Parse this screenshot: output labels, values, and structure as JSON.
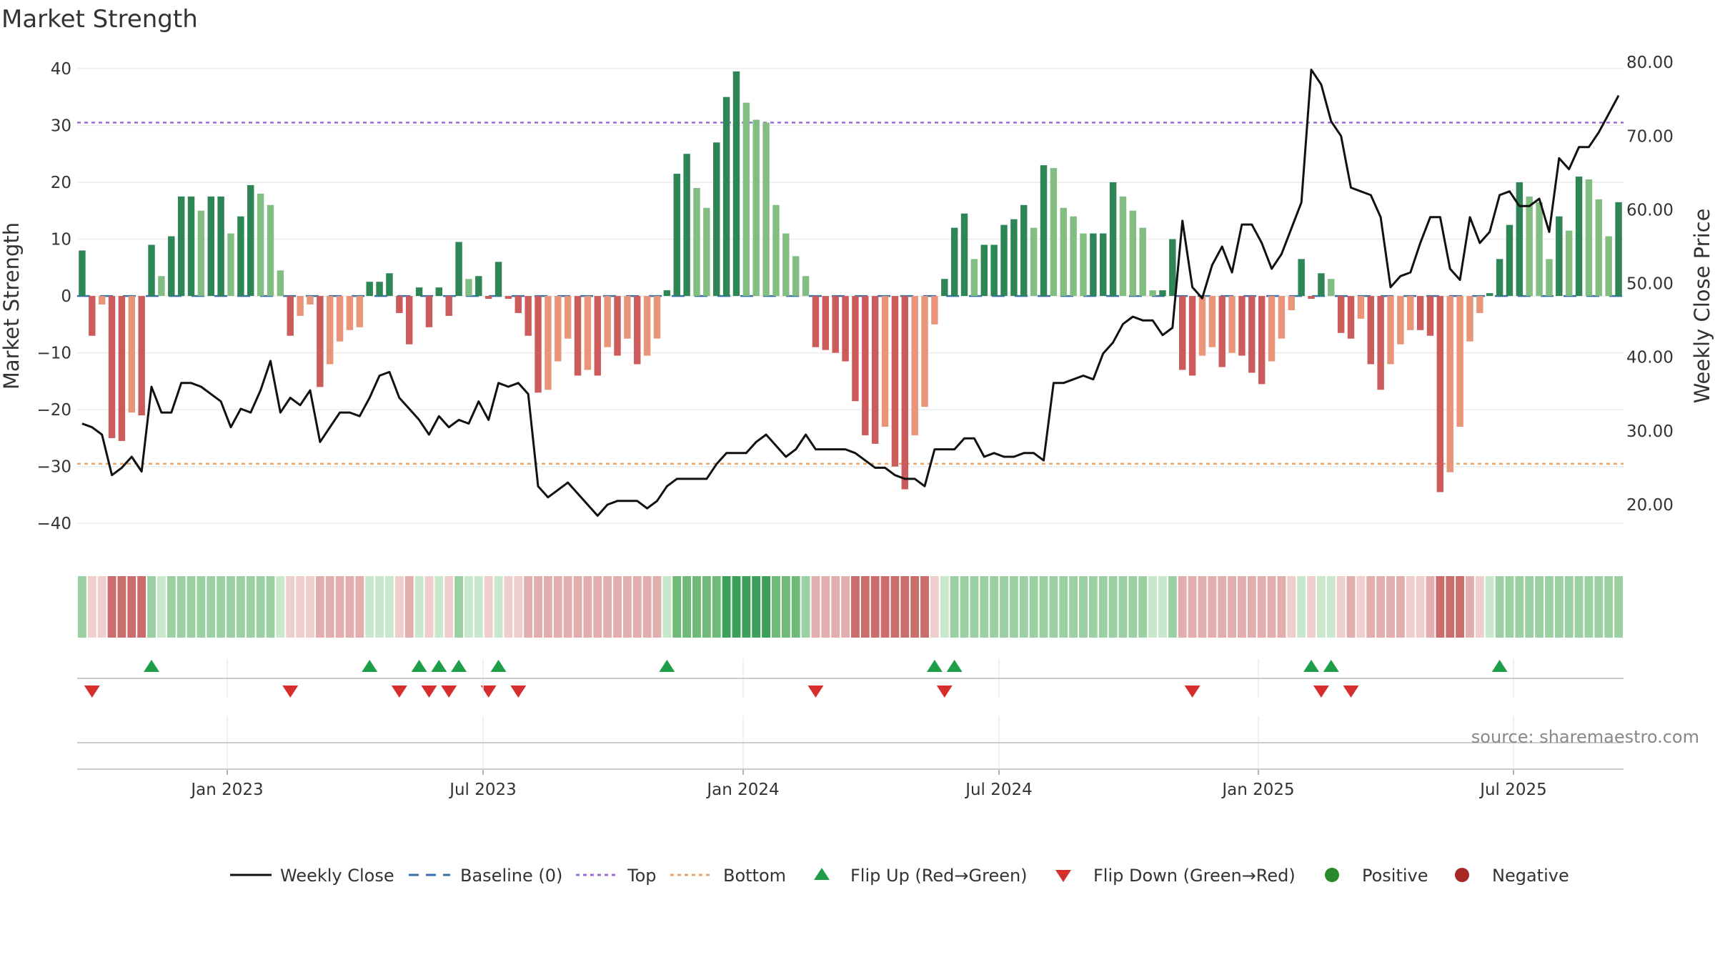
{
  "chart_data": {
    "type": "bar",
    "title": "Market Strength",
    "ylabel": "Market Strength",
    "y2label": "Weekly Close Price",
    "ylim": [
      -45,
      42
    ],
    "y2lim": [
      13.6,
      80.7
    ],
    "yticks": [
      40,
      30,
      20,
      10,
      0,
      -10,
      -20,
      -30,
      -40
    ],
    "y2ticks": [
      "80.00",
      "70.00",
      "60.00",
      "50.00",
      "40.00",
      "30.00",
      "20.00"
    ],
    "x_ticks": [
      "Jan 2023",
      "Jul 2023",
      "Jan 2024",
      "Jul 2024",
      "Jan 2025",
      "Jul 2025"
    ],
    "top_level": 30.5,
    "bottom_level": -29.5,
    "baseline": 0,
    "strength_values": [
      8,
      -7,
      -1.5,
      -25,
      -25.5,
      -20.5,
      -21,
      9,
      3.5,
      10.5,
      17.5,
      17.5,
      15,
      17.5,
      17.5,
      11,
      14,
      19.5,
      18,
      16,
      4.5,
      -7,
      -3.5,
      -1.5,
      -16,
      -12,
      -8,
      -6,
      -5.5,
      2.5,
      2.5,
      4,
      -3,
      -8.5,
      1.5,
      -5.5,
      1.5,
      -3.5,
      9.5,
      3,
      3.5,
      -0.5,
      6,
      -0.5,
      -3,
      -7,
      -17,
      -16.5,
      -11.5,
      -7.5,
      -14,
      -13,
      -14,
      -9,
      -10.5,
      -7.5,
      -12,
      -10.5,
      -7.5,
      1,
      21.5,
      25,
      19,
      15.5,
      27,
      35,
      39.5,
      34,
      31,
      30.5,
      16,
      11,
      7,
      3.5,
      -9,
      -9.5,
      -10,
      -11.5,
      -18.5,
      -24.5,
      -26,
      -23,
      -30,
      -34,
      -24.5,
      -19.5,
      -5,
      3,
      12,
      14.5,
      6.5,
      9,
      9,
      12.5,
      13.5,
      16,
      12,
      23,
      22.5,
      15.5,
      14,
      11,
      11,
      11,
      20,
      17.5,
      15,
      12,
      1,
      1,
      10,
      -13,
      -14,
      -10.5,
      -9,
      -12.5,
      -10,
      -10.5,
      -13.5,
      -15.5,
      -11.5,
      -7.5,
      -2.5,
      6.5,
      -0.5,
      4,
      3,
      -6.5,
      -7.5,
      -4,
      -12,
      -16.5,
      -12,
      -8.5,
      -6,
      -6,
      -7,
      -34.5,
      -31,
      -23,
      -8,
      -3,
      0.5,
      6.5,
      12.5,
      20,
      17.5,
      16.5,
      6.5,
      14,
      11.5,
      21,
      20.5,
      17,
      10.5,
      16.5
    ],
    "close_values": [
      31,
      30.5,
      29.5,
      24,
      25,
      26.5,
      24.5,
      36,
      32.5,
      32.5,
      36.5,
      36.5,
      36,
      35,
      34,
      30.5,
      33,
      32.5,
      35.5,
      39.5,
      32.5,
      34.5,
      33.5,
      35.5,
      28.5,
      30.5,
      32.5,
      32.5,
      32,
      34.5,
      37.5,
      38,
      34.5,
      33,
      31.5,
      29.5,
      32,
      30.5,
      31.5,
      31,
      34,
      31.5,
      36.5,
      36,
      36.5,
      35,
      22.5,
      21,
      22,
      23,
      21.5,
      20,
      18.5,
      20,
      20.5,
      20.5,
      20.5,
      19.5,
      20.5,
      22.5,
      23.5,
      23.5,
      23.5,
      23.5,
      25.5,
      27,
      27,
      27,
      28.5,
      29.5,
      28,
      26.5,
      27.5,
      29.5,
      27.5,
      27.5,
      27.5,
      27.5,
      27,
      26,
      25,
      25,
      24,
      23.5,
      23.5,
      22.5,
      27.5,
      27.5,
      27.5,
      29,
      29,
      26.5,
      27,
      26.5,
      26.5,
      27,
      27,
      26,
      36.5,
      36.5,
      37,
      37.5,
      37,
      40.5,
      42,
      44.5,
      45.5,
      45,
      45,
      43,
      44,
      58.5,
      49.5,
      48,
      52.5,
      55,
      51.5,
      58,
      58,
      55.5,
      52,
      54,
      57.5,
      61,
      79,
      77,
      72,
      70,
      63,
      62.5,
      62,
      59,
      49.5,
      51,
      51.5,
      55.5,
      59,
      59,
      52,
      50.5,
      59,
      55.5,
      57,
      62,
      62.5,
      60.5,
      60.5,
      61.5,
      57,
      67,
      65.5,
      68.5,
      68.5,
      70.5,
      73,
      75.5
    ],
    "strength_band_shade": [
      2,
      -1,
      -1,
      -3,
      -3,
      -3,
      -3,
      2,
      1,
      2,
      2,
      2,
      2,
      2,
      2,
      2,
      2,
      2,
      2,
      2,
      1,
      -1,
      -1,
      -1,
      -2,
      -2,
      -2,
      -2,
      -2,
      1,
      1,
      1,
      -1,
      -2,
      1,
      -1,
      1,
      -1,
      2,
      1,
      1,
      -1,
      1,
      -1,
      -1,
      -2,
      -2,
      -2,
      -2,
      -2,
      -2,
      -2,
      -2,
      -2,
      -2,
      -2,
      -2,
      -2,
      -2,
      1,
      3,
      3,
      3,
      3,
      3,
      4,
      4,
      4,
      4,
      4,
      3,
      3,
      3,
      2,
      -2,
      -2,
      -2,
      -2,
      -3,
      -3,
      -3,
      -3,
      -3,
      -3,
      -3,
      -3,
      -1,
      1,
      2,
      2,
      2,
      2,
      2,
      2,
      2,
      2,
      2,
      2,
      2,
      2,
      2,
      2,
      2,
      2,
      2,
      2,
      2,
      2,
      1,
      1,
      2,
      -2,
      -2,
      -2,
      -2,
      -2,
      -2,
      -2,
      -2,
      -2,
      -2,
      -2,
      -1,
      1,
      -1,
      1,
      1,
      -1,
      -2,
      -1,
      -2,
      -2,
      -2,
      -2,
      -1,
      -1,
      -2,
      -3,
      -3,
      -3,
      -2,
      -1,
      1,
      2,
      2,
      2,
      2,
      2,
      2,
      2,
      2,
      2,
      2,
      2,
      2,
      2
    ],
    "flip_up_weeks": [
      7,
      29,
      34,
      36,
      38,
      42,
      59,
      86,
      88,
      124,
      126,
      143
    ],
    "flip_down_weeks": [
      1,
      21,
      32,
      35,
      37,
      41,
      44,
      74,
      87,
      112,
      125,
      128
    ],
    "series": [
      {
        "name": "Weekly Close",
        "color": "#111111"
      },
      {
        "name": "Baseline (0)",
        "color": "#3a6fa8"
      },
      {
        "name": "Top",
        "color": "#9b6dd6"
      },
      {
        "name": "Bottom",
        "color": "#e8a56a"
      },
      {
        "name": "Flip Up (Red→Green)",
        "color": "#1f9e4a"
      },
      {
        "name": "Flip Down (Green→Red)",
        "color": "#d62d2d"
      },
      {
        "name": "Positive",
        "color": "#2a8a2a"
      },
      {
        "name": "Negative",
        "color": "#a82828"
      }
    ],
    "source": "source: sharemaestro.com"
  },
  "colors": {
    "pos_strong": "#2e8555",
    "pos_light": "#82be82",
    "neg_strong": "#cc5c5c",
    "neg_light": "#e8957a",
    "grid": "#ececec"
  }
}
